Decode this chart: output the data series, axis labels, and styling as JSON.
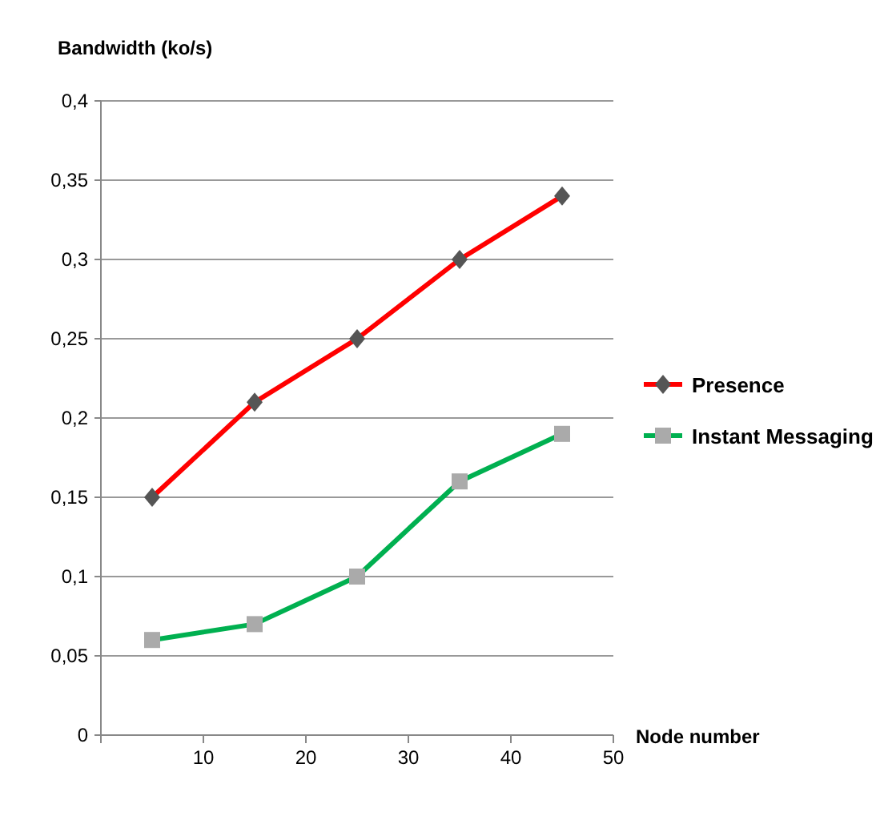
{
  "chart_data": {
    "type": "line",
    "ylabel": "Bandwidth (ko/s)",
    "xlabel": "Node number",
    "x": [
      5,
      15,
      25,
      35,
      45
    ],
    "series": [
      {
        "name": "Presence",
        "color": "#ff0000",
        "marker": "diamond",
        "values": [
          0.15,
          0.21,
          0.25,
          0.3,
          0.34
        ]
      },
      {
        "name": "Instant Messaging",
        "color": "#00b050",
        "marker": "square",
        "values": [
          0.06,
          0.07,
          0.1,
          0.16,
          0.19
        ]
      }
    ],
    "xlim": [
      0,
      50
    ],
    "xticks": [
      {
        "value": 0,
        "label": null
      },
      10,
      20,
      30,
      40,
      50
    ],
    "ylim": [
      0,
      0.4
    ],
    "yticks": [
      0,
      {
        "value": 0.05,
        "label": "0,05"
      },
      {
        "value": 0.1,
        "label": "0,1"
      },
      {
        "value": 0.15,
        "label": "0,15"
      },
      {
        "value": 0.2,
        "label": "0,2"
      },
      {
        "value": 0.25,
        "label": "0,25"
      },
      {
        "value": 0.3,
        "label": "0,3"
      },
      {
        "value": 0.35,
        "label": "0,35"
      },
      {
        "value": 0.4,
        "label": "0,4"
      }
    ],
    "grid": "y",
    "legend": "right",
    "line_style": "solid"
  }
}
